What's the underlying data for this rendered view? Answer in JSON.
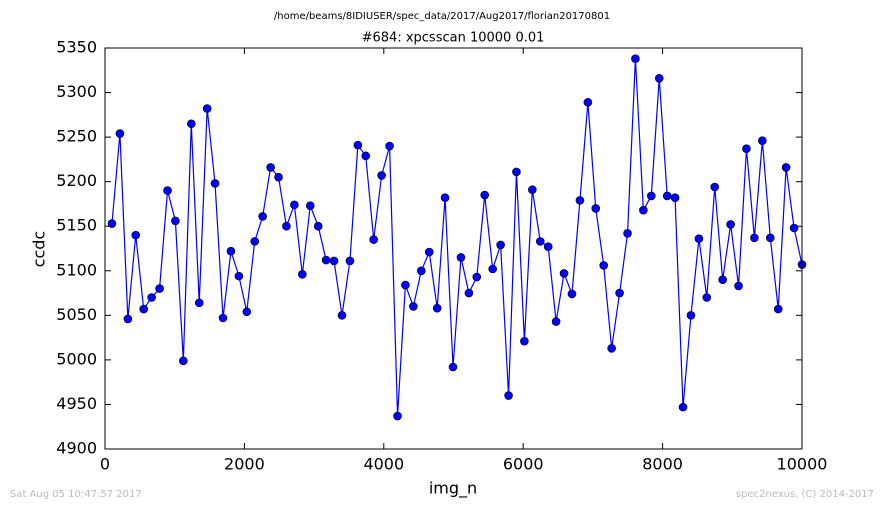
{
  "chart_data": {
    "type": "line",
    "title": "/home/beams/8IDIUSER/spec_data/2017/Aug2017/florian20170801",
    "subtitle": "#684: xpcsscan 10000 0.01",
    "footnote_left": "Sat Aug 05 10:47:57 2017",
    "footnote_right": "spec2nexus, (C) 2014-2017",
    "x_label": "img_n",
    "y_label": "ccdc",
    "xlim": [
      0,
      10000
    ],
    "xticks": [
      0,
      2000,
      4000,
      6000,
      8000,
      10000
    ],
    "ylim": [
      4900,
      5350
    ],
    "yticks": [
      4900,
      4950,
      5000,
      5050,
      5100,
      5150,
      5200,
      5250,
      5300,
      5350
    ],
    "x": [
      100,
      214,
      328,
      441,
      555,
      669,
      783,
      897,
      1010,
      1124,
      1238,
      1352,
      1466,
      1579,
      1693,
      1807,
      1921,
      2034,
      2148,
      2262,
      2376,
      2490,
      2603,
      2717,
      2831,
      2945,
      3059,
      3172,
      3286,
      3400,
      3514,
      3628,
      3741,
      3855,
      3969,
      4083,
      4197,
      4310,
      4424,
      4538,
      4652,
      4766,
      4879,
      4993,
      5107,
      5221,
      5334,
      5448,
      5562,
      5676,
      5790,
      5903,
      6017,
      6131,
      6245,
      6359,
      6472,
      6586,
      6700,
      6814,
      6928,
      7041,
      7155,
      7269,
      7383,
      7497,
      7610,
      7724,
      7838,
      7952,
      8066,
      8179,
      8293,
      8407,
      8521,
      8634,
      8748,
      8862,
      8976,
      9090,
      9203,
      9317,
      9431,
      9545,
      9659,
      9772,
      9886,
      10000
    ],
    "series": [
      {
        "color": "#0000ff",
        "values": [
          5153,
          5254,
          5046,
          5140,
          5057,
          5070,
          5080,
          5190,
          5156,
          4999,
          5265,
          5064,
          5282,
          5198,
          5047,
          5122,
          5094,
          5054,
          5133,
          5161,
          5216,
          5205,
          5150,
          5174,
          5096,
          5173,
          5150,
          5112,
          5111,
          5050,
          5111,
          5241,
          5229,
          5135,
          5207,
          5240,
          4937,
          5084,
          5060,
          5100,
          5121,
          5058,
          5182,
          4992,
          5115,
          5075,
          5093,
          5185,
          5102,
          5129,
          4960,
          5211,
          5021,
          5191,
          5133,
          5127,
          5043,
          5097,
          5074,
          5179,
          5289,
          5170,
          5106,
          5013,
          5075,
          5142,
          5338,
          5168,
          5184,
          5316,
          5184,
          5182,
          4947,
          5050,
          5136,
          5070,
          5194,
          5090,
          5152,
          5083,
          5237,
          5137,
          5246,
          5137,
          5057,
          5216,
          5148,
          5107
        ]
      }
    ]
  }
}
